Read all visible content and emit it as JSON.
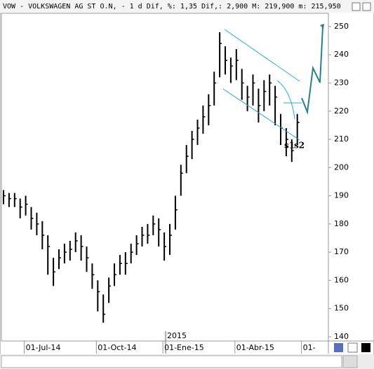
{
  "header": {
    "title": "VOW - VOLKSWAGEN AG ST O.N, -  1 d Dif, %: 1,35 Dif,: 2,900 M: 219,900 m: 215,950"
  },
  "chart_data": {
    "type": "ohlc",
    "categories": [
      null,
      null,
      null,
      null,
      "01-Jul-14",
      null,
      null,
      null,
      null,
      null,
      null,
      null,
      null,
      null,
      null,
      null,
      null,
      "01-Oct-14",
      null,
      null,
      null,
      null,
      null,
      null,
      null,
      null,
      null,
      null,
      null,
      "01-Ene-15",
      null,
      null,
      null,
      null,
      null,
      null,
      null,
      null,
      null,
      null,
      null,
      null,
      "01-Abr-15",
      null,
      null,
      null,
      null,
      null,
      null,
      null,
      null,
      null,
      null,
      null,
      "01-"
    ],
    "high": [
      192,
      191,
      191,
      189,
      190,
      186,
      184,
      181,
      176,
      168,
      171,
      173,
      174,
      177,
      176,
      172,
      166,
      160,
      155,
      161,
      166,
      169,
      170,
      173,
      176,
      179,
      180,
      183,
      182,
      177,
      180,
      190,
      201,
      208,
      213,
      217,
      222,
      226,
      234,
      248,
      243,
      239,
      242,
      235,
      229,
      233,
      228,
      231,
      233,
      229,
      219,
      214,
      210,
      219,
      null
    ],
    "low": [
      187,
      186,
      186,
      182,
      183,
      178,
      176,
      171,
      162,
      158,
      164,
      166,
      167,
      170,
      167,
      163,
      157,
      149,
      145,
      152,
      158,
      162,
      162,
      166,
      169,
      172,
      173,
      176,
      172,
      167,
      169,
      178,
      190,
      198,
      203,
      208,
      212,
      215,
      222,
      232,
      233,
      230,
      231,
      224,
      220,
      222,
      216,
      220,
      222,
      215,
      208,
      204,
      202,
      208,
      null
    ],
    "close": [
      190,
      189,
      189,
      186,
      187,
      182,
      180,
      176,
      172,
      163,
      168,
      170,
      171,
      174,
      172,
      168,
      162,
      156,
      148,
      158,
      162,
      166,
      166,
      170,
      173,
      176,
      176,
      180,
      178,
      172,
      176,
      185,
      198,
      204,
      210,
      214,
      218,
      222,
      230,
      244,
      238,
      236,
      238,
      230,
      225,
      230,
      222,
      227,
      230,
      225,
      214,
      210,
      206,
      216,
      null
    ],
    "color": "#000000",
    "ylim": [
      138.5,
      254.7
    ],
    "yticks": [
      140,
      150,
      160,
      170,
      180,
      190,
      200,
      210,
      220,
      230,
      240,
      250
    ],
    "annotations": [
      "s1",
      "s2",
      "2015"
    ]
  }
}
